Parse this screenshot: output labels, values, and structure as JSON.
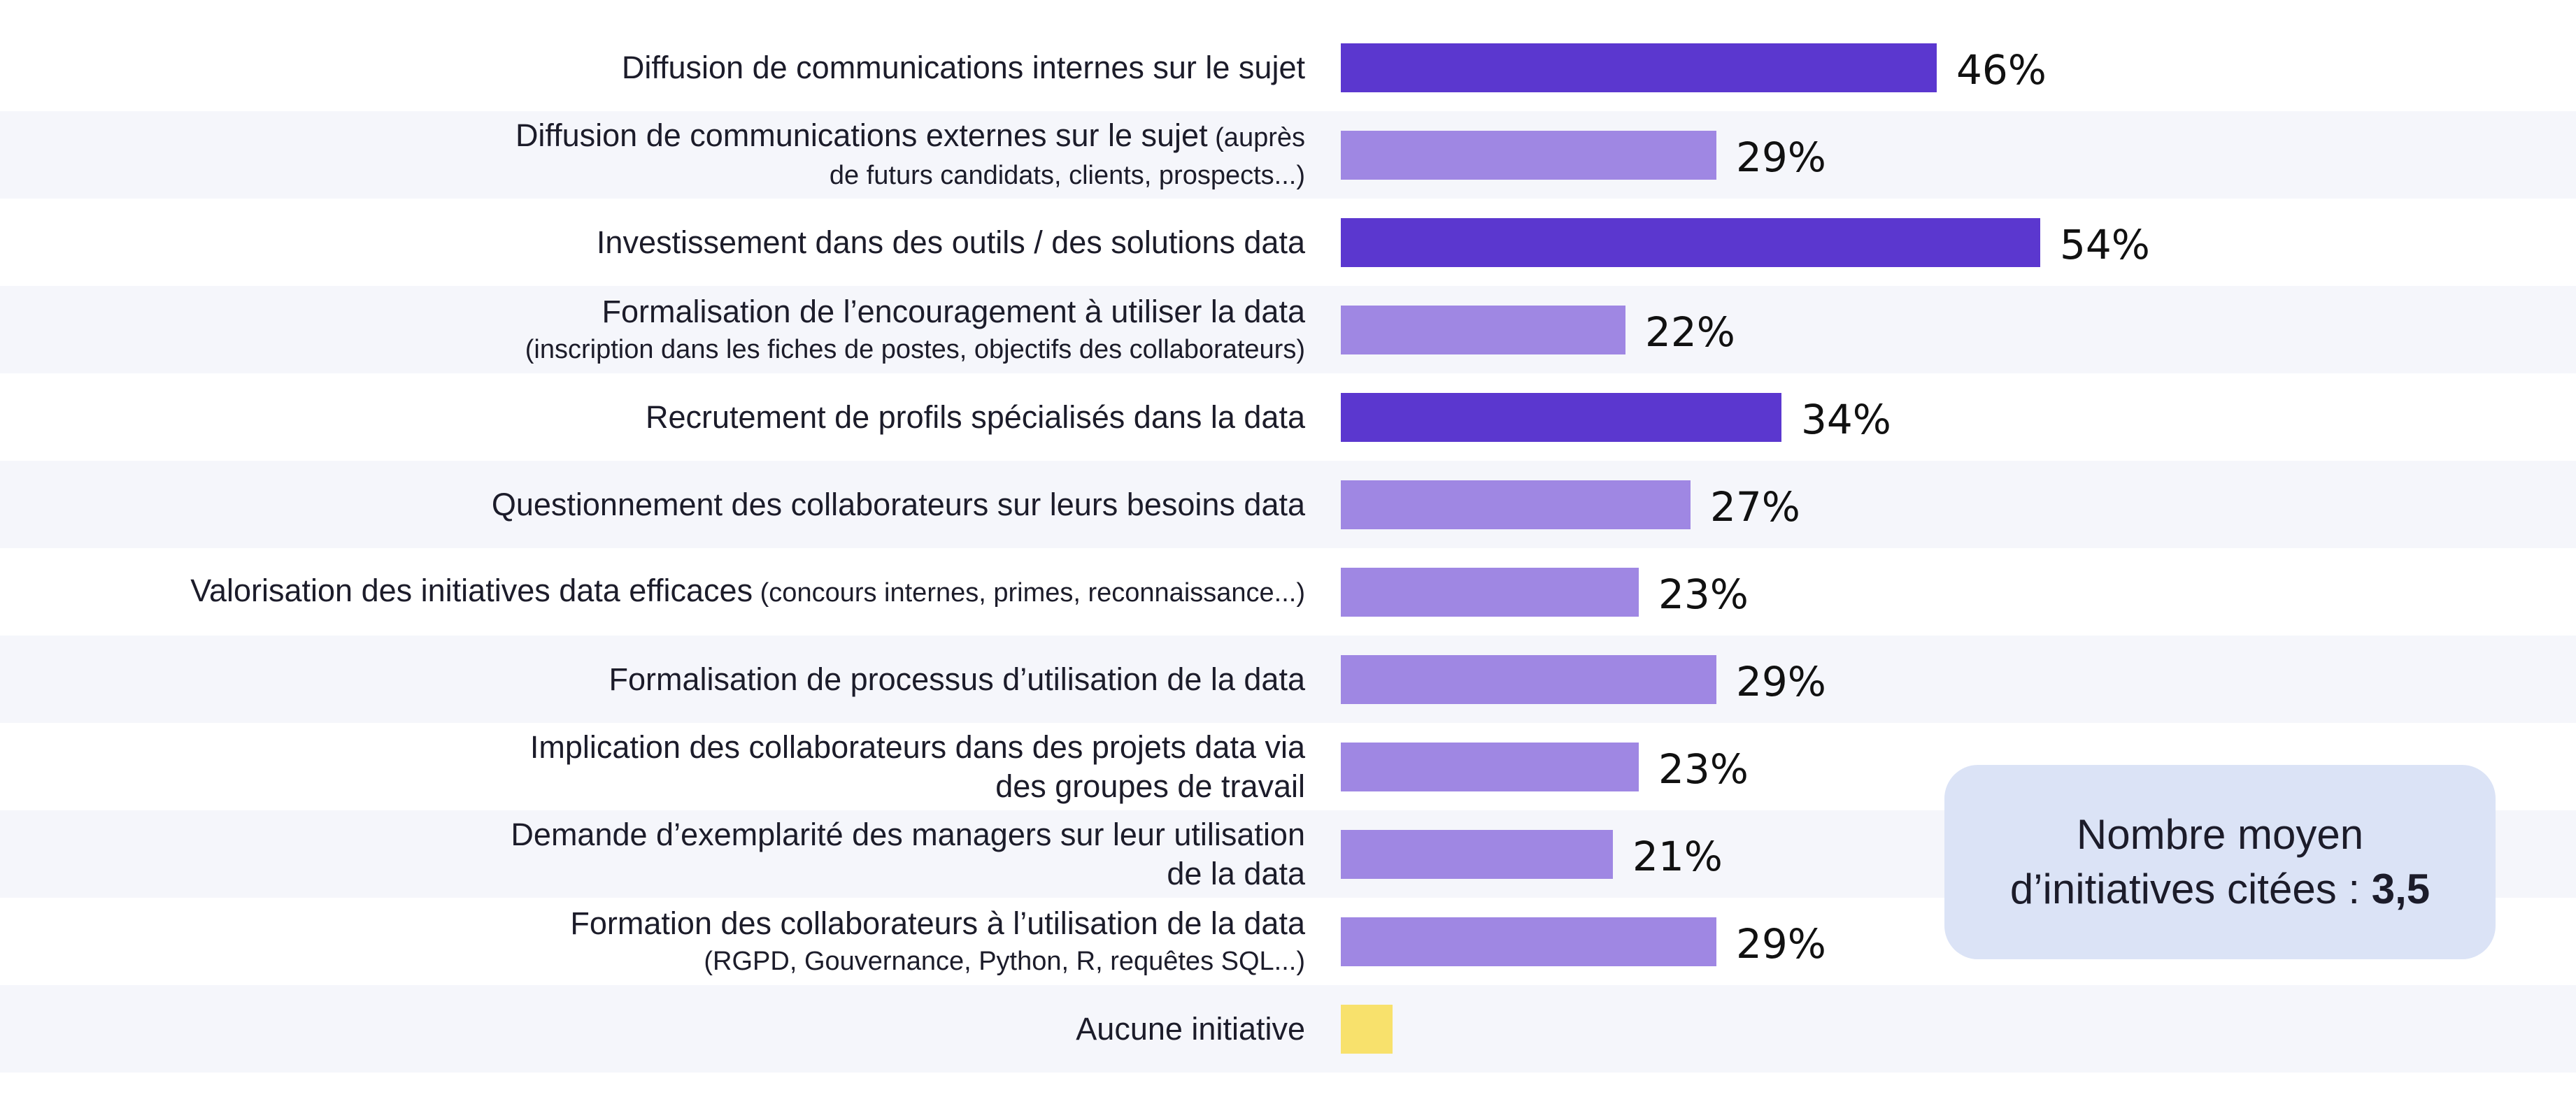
{
  "chart_data": {
    "type": "bar",
    "orientation": "horizontal",
    "value_suffix": "%",
    "categories": [
      {
        "main": "Diffusion de communications internes sur le sujet",
        "sub": "",
        "line2": "",
        "line2_style": ""
      },
      {
        "main": "Diffusion de communications externes sur le sujet",
        "sub": "(auprès",
        "line2": "de futurs candidats, clients, prospects...)",
        "line2_style": "small"
      },
      {
        "main": "Investissement dans des outils / des solutions data",
        "sub": "",
        "line2": "",
        "line2_style": ""
      },
      {
        "main": "Formalisation de l’encouragement à utiliser la data",
        "sub": "",
        "line2": "(inscription dans les fiches de postes, objectifs des collaborateurs)",
        "line2_style": "small"
      },
      {
        "main": "Recrutement de profils spécialisés dans la data",
        "sub": "",
        "line2": "",
        "line2_style": ""
      },
      {
        "main": "Questionnement des collaborateurs sur leurs besoins data",
        "sub": "",
        "line2": "",
        "line2_style": ""
      },
      {
        "main": "Valorisation des initiatives data efficaces",
        "sub": "(concours internes, primes, reconnaissance...)",
        "line2": "",
        "line2_style": ""
      },
      {
        "main": "Formalisation de processus d’utilisation de la data",
        "sub": "",
        "line2": "",
        "line2_style": ""
      },
      {
        "main": "Implication des collaborateurs dans des projets data via",
        "sub": "",
        "line2": "des groupes de travail",
        "line2_style": "big"
      },
      {
        "main": "Demande d’exemplarité des managers sur leur utilisation",
        "sub": "",
        "line2": "de la data",
        "line2_style": "big"
      },
      {
        "main": "Formation des collaborateurs à l’utilisation de la data",
        "sub": "",
        "line2": "(RGPD, Gouvernance, Python, R, requêtes SQL...)",
        "line2_style": "small"
      },
      {
        "main": "Aucune initiative",
        "sub": "",
        "line2": "",
        "line2_style": ""
      }
    ],
    "values": [
      46,
      29,
      54,
      22,
      34,
      27,
      23,
      29,
      23,
      21,
      29,
      4
    ],
    "show_value_labels": [
      true,
      true,
      true,
      true,
      true,
      true,
      true,
      true,
      true,
      true,
      true,
      false
    ],
    "bar_colors": [
      "#5b37cf",
      "#9f87e3",
      "#5b37cf",
      "#9f87e3",
      "#5b37cf",
      "#9f87e3",
      "#9f87e3",
      "#9f87e3",
      "#9f87e3",
      "#9f87e3",
      "#9f87e3",
      "#f8e16c"
    ],
    "xlim": [
      0,
      100
    ],
    "grid": false,
    "legend": "none",
    "title": "",
    "xlabel": "",
    "ylabel": ""
  },
  "callout": {
    "line1": "Nombre moyen",
    "line2": "d’initiatives citées : ",
    "value": "3,5"
  },
  "colors": {
    "band": "#f5f6fb",
    "callout_bg": "#dbe3f6"
  }
}
